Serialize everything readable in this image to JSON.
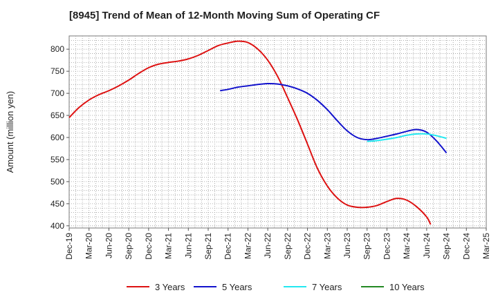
{
  "chart_data": {
    "type": "line",
    "title": "[8945]  Trend of Mean of 12-Month Moving Sum of Operating CF",
    "xlabel": "",
    "ylabel": "Amount (million yen)",
    "ylim": [
      395,
      830
    ],
    "yticks": [
      400,
      450,
      500,
      550,
      600,
      650,
      700,
      750,
      800
    ],
    "grid": true,
    "x_categories": [
      "Dec-19",
      "Mar-20",
      "Jun-20",
      "Sep-20",
      "Dec-20",
      "Mar-21",
      "Jun-21",
      "Sep-21",
      "Dec-21",
      "Mar-22",
      "Jun-22",
      "Sep-22",
      "Dec-22",
      "Mar-23",
      "Jun-23",
      "Sep-23",
      "Dec-23",
      "Mar-24",
      "Jun-24",
      "Sep-24",
      "Dec-24",
      "Mar-25"
    ],
    "series": [
      {
        "name": "3 Years",
        "color": "#dd1111",
        "points": [
          [
            0,
            645
          ],
          [
            0.5,
            668
          ],
          [
            1,
            685
          ],
          [
            1.5,
            697
          ],
          [
            2,
            706
          ],
          [
            2.5,
            717
          ],
          [
            3,
            730
          ],
          [
            3.5,
            745
          ],
          [
            4,
            758
          ],
          [
            4.5,
            766
          ],
          [
            5,
            770
          ],
          [
            5.5,
            773
          ],
          [
            6,
            778
          ],
          [
            6.5,
            786
          ],
          [
            7,
            797
          ],
          [
            7.5,
            808
          ],
          [
            8,
            814
          ],
          [
            8.5,
            818
          ],
          [
            9,
            815
          ],
          [
            9.5,
            800
          ],
          [
            10,
            775
          ],
          [
            10.5,
            738
          ],
          [
            11,
            690
          ],
          [
            11.5,
            640
          ],
          [
            12,
            585
          ],
          [
            12.5,
            530
          ],
          [
            13,
            490
          ],
          [
            13.5,
            463
          ],
          [
            14,
            447
          ],
          [
            14.5,
            442
          ],
          [
            15,
            442
          ],
          [
            15.5,
            446
          ],
          [
            16,
            455
          ],
          [
            16.5,
            462
          ],
          [
            17,
            458
          ],
          [
            17.5,
            443
          ],
          [
            18,
            420
          ],
          [
            18.2,
            403
          ]
        ]
      },
      {
        "name": "5 Years",
        "color": "#1111cc",
        "points": [
          [
            7.6,
            706
          ],
          [
            8,
            709
          ],
          [
            8.5,
            714
          ],
          [
            9,
            717
          ],
          [
            9.5,
            720
          ],
          [
            10,
            722
          ],
          [
            10.5,
            721
          ],
          [
            11,
            717
          ],
          [
            11.5,
            710
          ],
          [
            12,
            700
          ],
          [
            12.5,
            684
          ],
          [
            13,
            663
          ],
          [
            13.5,
            638
          ],
          [
            14,
            615
          ],
          [
            14.5,
            600
          ],
          [
            15,
            595
          ],
          [
            15.5,
            598
          ],
          [
            16,
            603
          ],
          [
            16.5,
            608
          ],
          [
            17,
            614
          ],
          [
            17.5,
            618
          ],
          [
            18,
            612
          ],
          [
            18.5,
            592
          ],
          [
            19,
            565
          ]
        ]
      },
      {
        "name": "7 Years",
        "color": "#22e8f0",
        "points": [
          [
            15,
            591
          ],
          [
            15.5,
            593
          ],
          [
            16,
            596
          ],
          [
            16.5,
            600
          ],
          [
            17,
            605
          ],
          [
            17.5,
            608
          ],
          [
            18,
            608
          ],
          [
            18.5,
            604
          ],
          [
            19,
            598
          ]
        ]
      },
      {
        "name": "10 Years",
        "color": "#228822",
        "points": []
      }
    ]
  }
}
